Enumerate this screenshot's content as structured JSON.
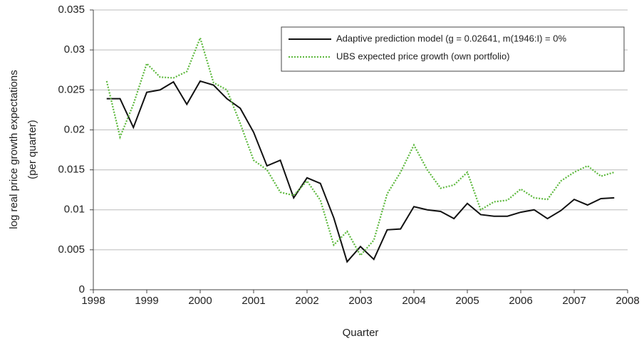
{
  "chart_data": {
    "type": "line",
    "xlabel": "Quarter",
    "ylabel": [
      "log real price growth expectations",
      "(per quarter)"
    ],
    "x": [
      1998.25,
      1998.5,
      1998.75,
      1999,
      1999.25,
      1999.5,
      1999.75,
      2000,
      2000.25,
      2000.5,
      2000.75,
      2001,
      2001.25,
      2001.5,
      2001.75,
      2002,
      2002.25,
      2002.5,
      2002.75,
      2003,
      2003.25,
      2003.5,
      2003.75,
      2004,
      2004.25,
      2004.5,
      2004.75,
      2005,
      2005.25,
      2005.5,
      2005.75,
      2006,
      2006.25,
      2006.5,
      2006.75,
      2007,
      2007.25,
      2007.5,
      2007.75
    ],
    "series": [
      {
        "name": "Adaptive prediction model (g = 0.02641, m(1946:I) = 0%",
        "color": "#111111",
        "style": "solid",
        "values": [
          0.0239,
          0.0239,
          0.0203,
          0.0247,
          0.025,
          0.026,
          0.0232,
          0.0261,
          0.0256,
          0.0239,
          0.0227,
          0.0197,
          0.0155,
          0.0162,
          0.0115,
          0.014,
          0.0133,
          0.009,
          0.0035,
          0.0054,
          0.0038,
          0.0075,
          0.0076,
          0.0104,
          0.01,
          0.0098,
          0.0089,
          0.0108,
          0.0094,
          0.0092,
          0.0092,
          0.0097,
          0.01,
          0.0089,
          0.0099,
          0.0113,
          0.0106,
          0.0114,
          0.0115
        ]
      },
      {
        "name": "UBS expected price growth (own portfolio)",
        "color": "#5cb83c",
        "style": "dotted",
        "values": [
          0.0261,
          0.0191,
          0.0232,
          0.0283,
          0.0266,
          0.0265,
          0.0273,
          0.0315,
          0.0259,
          0.025,
          0.0208,
          0.0162,
          0.015,
          0.0122,
          0.0118,
          0.0136,
          0.0112,
          0.0056,
          0.0073,
          0.0043,
          0.0062,
          0.012,
          0.0147,
          0.0181,
          0.015,
          0.0127,
          0.0131,
          0.0147,
          0.01,
          0.011,
          0.0112,
          0.0126,
          0.0115,
          0.0113,
          0.0136,
          0.0147,
          0.0155,
          0.0142,
          0.0147
        ]
      }
    ],
    "xlim": [
      1998,
      2008
    ],
    "xticks": [
      1998,
      1999,
      2000,
      2001,
      2002,
      2003,
      2004,
      2005,
      2006,
      2007,
      2008
    ],
    "ylim": [
      0,
      0.035
    ],
    "yticks": [
      0,
      0.005,
      0.01,
      0.015,
      0.02,
      0.025,
      0.03,
      0.035
    ],
    "grid": true,
    "legend": "upper right"
  }
}
